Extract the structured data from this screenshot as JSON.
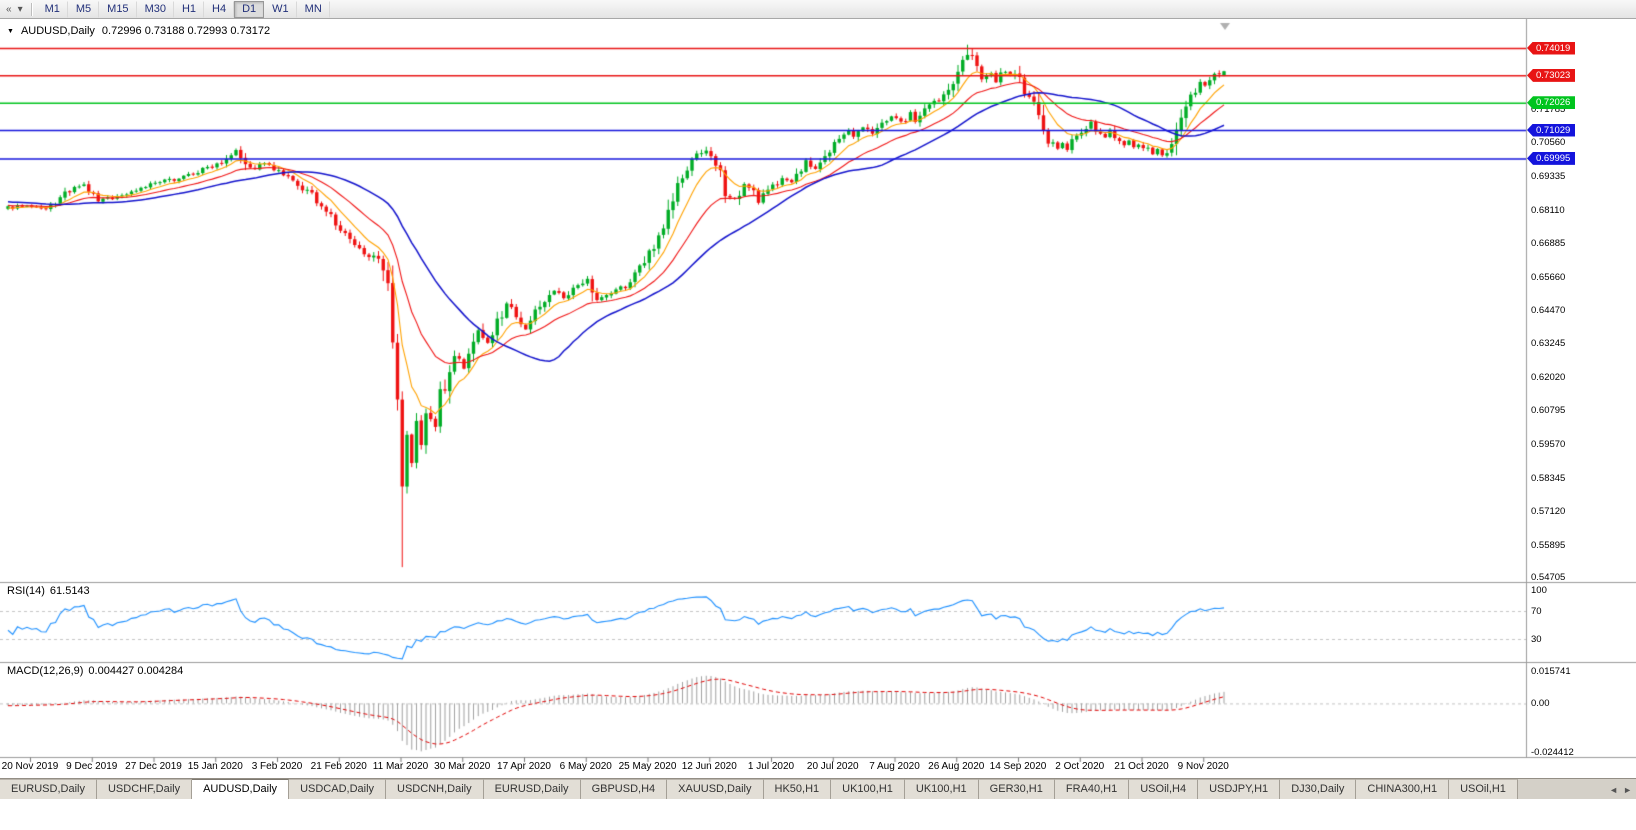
{
  "toolbar": {
    "left_icons": [
      "chart-tools-icon",
      "toolbar-dropdown-icon"
    ],
    "left_icon_glyphs": [
      "«",
      "▾"
    ],
    "timeframes": [
      "M1",
      "M5",
      "M15",
      "M30",
      "H1",
      "H4",
      "D1",
      "W1",
      "MN"
    ],
    "active_timeframe": "D1"
  },
  "chart_data": {
    "type": "candlestick",
    "symbol_period": "AUDUSD,Daily",
    "ohlc_text": "0.72996 0.73188 0.72993 0.73172",
    "open": "0.72996",
    "high": "0.73188",
    "low": "0.72993",
    "close": "0.73172",
    "x_labels": [
      "20 Nov 2019",
      "9 Dec 2019",
      "27 Dec 2019",
      "15 Jan 2020",
      "3 Feb 2020",
      "21 Feb 2020",
      "11 Mar 2020",
      "30 Mar 2020",
      "17 Apr 2020",
      "6 May 2020",
      "25 May 2020",
      "12 Jun 2020",
      "1 Jul 2020",
      "20 Jul 2020",
      "7 Aug 2020",
      "26 Aug 2020",
      "14 Sep 2020",
      "2 Oct 2020",
      "21 Oct 2020",
      "9 Nov 2020"
    ],
    "y_axis_labels": [
      "0.71785",
      "0.70560",
      "0.69335",
      "0.68110",
      "0.66885",
      "0.65660",
      "0.64470",
      "0.63245",
      "0.62020",
      "0.60795",
      "0.59570",
      "0.58345",
      "0.57120",
      "0.55895",
      "0.54705"
    ],
    "levels": [
      {
        "price": 0.74019,
        "label": "0.74019",
        "color": "#e81414"
      },
      {
        "price": 0.73023,
        "label": "0.73023",
        "color": "#e81414"
      },
      {
        "price": 0.72026,
        "label": "0.72026",
        "color": "#00c41e"
      },
      {
        "price": 0.71029,
        "label": "0.71029",
        "color": "#1414dc"
      },
      {
        "price": 0.69995,
        "label": "0.69995",
        "color": "#1414dc"
      }
    ],
    "candle_count": 257,
    "anchors": [
      [
        0,
        0.682
      ],
      [
        3,
        0.6828
      ],
      [
        8,
        0.681
      ],
      [
        13,
        0.6883
      ],
      [
        16,
        0.69
      ],
      [
        19,
        0.6846
      ],
      [
        24,
        0.6864
      ],
      [
        29,
        0.69
      ],
      [
        34,
        0.692
      ],
      [
        40,
        0.695
      ],
      [
        45,
        0.699
      ],
      [
        48,
        0.7035
      ],
      [
        51,
        0.696
      ],
      [
        54,
        0.698
      ],
      [
        58,
        0.6937
      ],
      [
        61,
        0.69
      ],
      [
        64,
        0.6865
      ],
      [
        67,
        0.681
      ],
      [
        69,
        0.6757
      ],
      [
        72,
        0.67
      ],
      [
        74,
        0.6665
      ],
      [
        76,
        0.665
      ],
      [
        78,
        0.662
      ],
      [
        80,
        0.652
      ],
      [
        81,
        0.63
      ],
      [
        82,
        0.61
      ],
      [
        83,
        0.5785
      ],
      [
        84,
        0.6
      ],
      [
        85,
        0.589
      ],
      [
        86,
        0.603
      ],
      [
        87,
        0.5965
      ],
      [
        88,
        0.6075
      ],
      [
        90,
        0.602
      ],
      [
        91,
        0.613
      ],
      [
        93,
        0.622
      ],
      [
        94,
        0.629
      ],
      [
        96,
        0.6235
      ],
      [
        98,
        0.6325
      ],
      [
        99,
        0.638
      ],
      [
        101,
        0.6325
      ],
      [
        103,
        0.64
      ],
      [
        105,
        0.647
      ],
      [
        107,
        0.6435
      ],
      [
        109,
        0.638
      ],
      [
        111,
        0.6435
      ],
      [
        113,
        0.6485
      ],
      [
        115,
        0.652
      ],
      [
        117,
        0.6485
      ],
      [
        120,
        0.6535
      ],
      [
        122,
        0.657
      ],
      [
        124,
        0.648
      ],
      [
        126,
        0.65
      ],
      [
        128,
        0.652
      ],
      [
        130,
        0.6535
      ],
      [
        132,
        0.657
      ],
      [
        134,
        0.6625
      ],
      [
        137,
        0.6715
      ],
      [
        139,
        0.6805
      ],
      [
        141,
        0.69
      ],
      [
        143,
        0.6955
      ],
      [
        145,
        0.701
      ],
      [
        147,
        0.7035
      ],
      [
        148,
        0.699
      ],
      [
        150,
        0.6935
      ],
      [
        151,
        0.688
      ],
      [
        153,
        0.685
      ],
      [
        155,
        0.69
      ],
      [
        157,
        0.6875
      ],
      [
        158,
        0.6845
      ],
      [
        160,
        0.688
      ],
      [
        162,
        0.691
      ],
      [
        163,
        0.6935
      ],
      [
        165,
        0.691
      ],
      [
        167,
        0.696
      ],
      [
        168,
        0.6985
      ],
      [
        170,
        0.696
      ],
      [
        172,
        0.7
      ],
      [
        173,
        0.7035
      ],
      [
        175,
        0.707
      ],
      [
        177,
        0.7105
      ],
      [
        178,
        0.7075
      ],
      [
        180,
        0.711
      ],
      [
        182,
        0.7085
      ],
      [
        183,
        0.712
      ],
      [
        185,
        0.7145
      ],
      [
        186,
        0.7155
      ],
      [
        188,
        0.713
      ],
      [
        190,
        0.7165
      ],
      [
        191,
        0.7135
      ],
      [
        193,
        0.717
      ],
      [
        195,
        0.72
      ],
      [
        197,
        0.7225
      ],
      [
        198,
        0.725
      ],
      [
        199,
        0.728
      ],
      [
        200,
        0.7335
      ],
      [
        202,
        0.738
      ],
      [
        203,
        0.7365
      ],
      [
        204,
        0.732
      ],
      [
        205,
        0.7285
      ],
      [
        207,
        0.731
      ],
      [
        208,
        0.728
      ],
      [
        209,
        0.732
      ],
      [
        211,
        0.7305
      ],
      [
        212,
        0.731
      ],
      [
        213,
        0.728
      ],
      [
        214,
        0.7245
      ],
      [
        216,
        0.721
      ],
      [
        217,
        0.7165
      ],
      [
        218,
        0.712
      ],
      [
        219,
        0.707
      ],
      [
        221,
        0.7035
      ],
      [
        222,
        0.7055
      ],
      [
        223,
        0.703
      ],
      [
        224,
        0.7065
      ],
      [
        226,
        0.709
      ],
      [
        227,
        0.7115
      ],
      [
        228,
        0.7135
      ],
      [
        229,
        0.7105
      ],
      [
        231,
        0.7075
      ],
      [
        232,
        0.71
      ],
      [
        233,
        0.707
      ],
      [
        235,
        0.704
      ],
      [
        236,
        0.7065
      ],
      [
        237,
        0.7035
      ],
      [
        238,
        0.7055
      ],
      [
        240,
        0.703
      ],
      [
        241,
        0.701
      ],
      [
        242,
        0.7035
      ],
      [
        243,
        0.7015
      ],
      [
        245,
        0.704
      ],
      [
        246,
        0.709
      ],
      [
        247,
        0.7145
      ],
      [
        248,
        0.721
      ],
      [
        250,
        0.725
      ],
      [
        251,
        0.728
      ],
      [
        252,
        0.7265
      ],
      [
        253,
        0.7285
      ],
      [
        255,
        0.731
      ],
      [
        256,
        0.73172
      ]
    ],
    "specials": {
      "crash_index": 83,
      "crash_low": 0.551,
      "peak_index": 202,
      "peak_high": 0.7414
    },
    "moving_averages": [
      {
        "period": 8,
        "type": "ema",
        "color": "#ffa200",
        "width": 1.1
      },
      {
        "period": 20,
        "type": "ema",
        "color": "#f01414",
        "width": 1.1
      },
      {
        "period": 34,
        "type": "sma",
        "color": "#1212cc",
        "width": 1.5
      }
    ],
    "rsi": {
      "name": "RSI(14)",
      "value": "61.5143",
      "color": "#1e90ff",
      "levels": [
        "100",
        "70",
        "30"
      ],
      "dashed_levels": [
        70,
        30
      ]
    },
    "macd": {
      "name": "MACD(12,26,9)",
      "values": "0.004427 0.004284",
      "axis_labels": [
        "0.015741",
        "0.00",
        "-0.024412"
      ],
      "hist_color": "#a0a0a0",
      "signal_color": "#e00000"
    }
  },
  "tabs": {
    "items": [
      "EURUSD,Daily",
      "USDCHF,Daily",
      "AUDUSD,Daily",
      "USDCAD,Daily",
      "USDCNH,Daily",
      "EURUSD,Daily",
      "GBPUSD,H4",
      "XAUUSD,Daily",
      "HK50,H1",
      "UK100,H1",
      "UK100,H1",
      "GER30,H1",
      "FRA40,H1",
      "USOil,H4",
      "USDJPY,H1",
      "DJ30,Daily",
      "CHINA300,H1",
      "USOil,H1"
    ],
    "active_index": 2,
    "scroll_left_glyph": "◄",
    "scroll_right_glyph": "►"
  },
  "colors": {
    "bull": "#00ad26",
    "bear": "#ef1212",
    "background": "#ffffff",
    "axis_text": "#000000",
    "grid": "#c4c4c4",
    "separator": "#9a9a9a",
    "shift_marker": "#b0b0b0"
  }
}
